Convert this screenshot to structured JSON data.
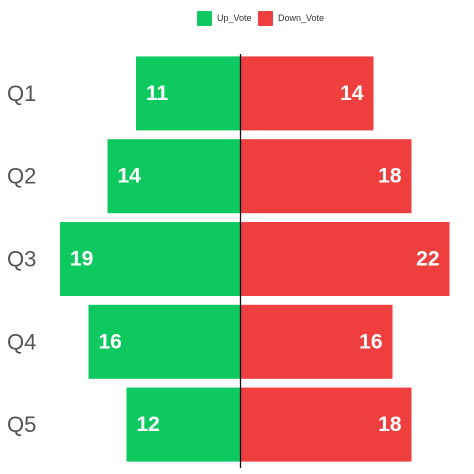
{
  "chart_data": {
    "type": "bar",
    "orientation": "horizontal-diverging",
    "categories": [
      "Q1",
      "Q2",
      "Q3",
      "Q4",
      "Q5"
    ],
    "series": [
      {
        "name": "Up_Vote",
        "values": [
          11,
          14,
          19,
          16,
          12
        ],
        "color": "#0ec95f"
      },
      {
        "name": "Down_Vote",
        "values": [
          14,
          18,
          22,
          16,
          18
        ],
        "color": "#ee3e3e"
      }
    ],
    "xlim": [
      -20,
      25
    ],
    "legend_position": "top-center",
    "grid": false,
    "title": "",
    "xlabel": "",
    "ylabel": ""
  }
}
